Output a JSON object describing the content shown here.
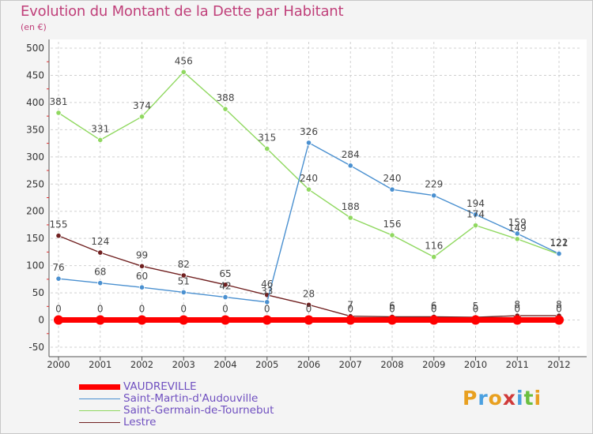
{
  "header": {
    "title": "Evolution du Montant de la Dette par Habitant",
    "unit": "(en €)"
  },
  "logo": {
    "letters": [
      {
        "char": "P",
        "color": "#e8a020"
      },
      {
        "char": "r",
        "color": "#4aa0e0"
      },
      {
        "char": "o",
        "color": "#e8a020"
      },
      {
        "char": "x",
        "color": "#d03a3a"
      },
      {
        "char": "i",
        "color": "#4aa0e0"
      },
      {
        "char": "t",
        "color": "#6abf40"
      },
      {
        "char": "i",
        "color": "#e8a020"
      }
    ]
  },
  "colors": {
    "background": "#f4f4f4",
    "grid": "#d0d0d0",
    "axis": "#555555",
    "title": "#c0407a",
    "legend_text": "#7050c0",
    "minor_ticks": "#e03030"
  },
  "chart_data": {
    "type": "line",
    "title": "Evolution du Montant de la Dette par Habitant",
    "xlabel": "",
    "ylabel": "(en €)",
    "x": [
      "2000",
      "2001",
      "2002",
      "2003",
      "2004",
      "2005",
      "2006",
      "2007",
      "2008",
      "2009",
      "2010",
      "2011",
      "2012"
    ],
    "ylim": [
      -50,
      500
    ],
    "yticks": [
      "-50",
      "0",
      "50",
      "100",
      "150",
      "200",
      "250",
      "300",
      "350",
      "400",
      "450",
      "500"
    ],
    "grid": true,
    "legend_position": "bottom-left",
    "series": [
      {
        "name": "VAUDREVILLE",
        "color": "#ff0000",
        "values": [
          0,
          0,
          0,
          0,
          0,
          0,
          0,
          0,
          0,
          0,
          0,
          0,
          0
        ],
        "labels": [
          "0",
          "0",
          "0",
          "0",
          "0",
          "0",
          "0",
          "0",
          "0",
          "0",
          "0",
          "0",
          "0"
        ]
      },
      {
        "name": "Saint-Martin-d'Audouville",
        "color": "#4a90d0",
        "values": [
          76,
          68,
          60,
          51,
          42,
          33,
          326,
          284,
          240,
          229,
          194,
          159,
          122
        ],
        "labels": [
          "76",
          "68",
          "60",
          "51",
          "42",
          "33",
          "326",
          "284",
          "240",
          "229",
          "194",
          "159",
          "122"
        ]
      },
      {
        "name": "Saint-Germain-de-Tournebut",
        "color": "#90d860",
        "values": [
          381,
          331,
          374,
          456,
          388,
          315,
          240,
          188,
          156,
          116,
          174,
          149,
          121
        ],
        "labels": [
          "381",
          "331",
          "374",
          "456",
          "388",
          "315",
          "240",
          "188",
          "156",
          "116",
          "174",
          "149",
          "121"
        ]
      },
      {
        "name": "Lestre",
        "color": "#702020",
        "values": [
          155,
          124,
          99,
          82,
          65,
          46,
          28,
          7,
          6,
          6,
          5,
          8,
          8
        ],
        "labels": [
          "155",
          "124",
          "99",
          "82",
          "65",
          "46",
          "28",
          "7",
          "6",
          "6",
          "5",
          "8",
          "8"
        ]
      }
    ]
  }
}
